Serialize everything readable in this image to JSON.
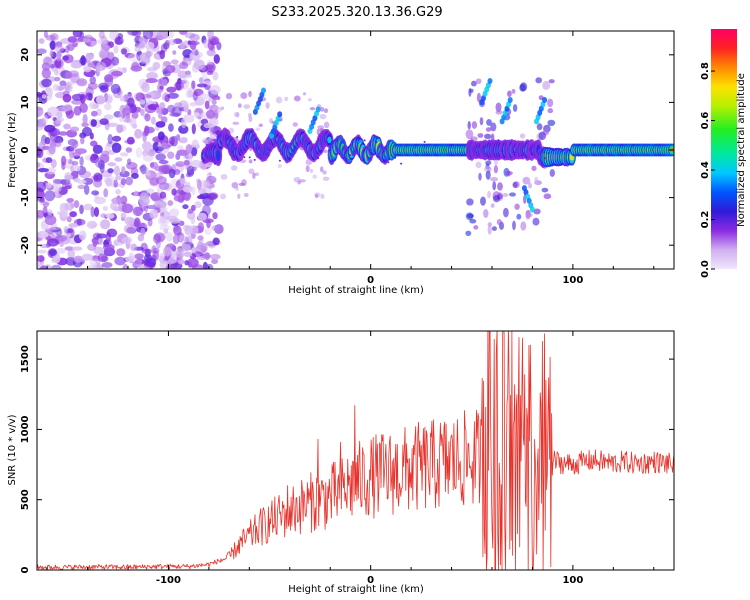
{
  "title": "S233.2025.320.13.36.G29",
  "chart_data": [
    {
      "type": "heatmap",
      "xlabel": "Height of straight line (km)",
      "ylabel": "Frequency (Hz)",
      "xlim": [
        -165,
        150
      ],
      "ylim": [
        -25,
        25
      ],
      "xticks": [
        -100,
        0,
        100
      ],
      "yticks": [
        -20,
        -10,
        0,
        10,
        20
      ],
      "colorbar": {
        "label": "Normalized spectral amplitude",
        "range": [
          0,
          0.97
        ],
        "ticks": [
          0.0,
          0.2,
          0.4,
          0.6,
          0.8
        ],
        "tick_labels": [
          "0.0",
          "0.2",
          "0.4",
          "0.6",
          "0.8"
        ]
      },
      "features": [
        {
          "name": "noise-region",
          "x_range": [
            -165,
            -80
          ],
          "y_range": [
            -25,
            25
          ],
          "amplitude": 0.1
        },
        {
          "name": "signal-band",
          "x_range": [
            -82,
            150
          ],
          "y_center": 0,
          "amplitude_range": [
            0.2,
            0.95
          ]
        },
        {
          "name": "burst",
          "x_range": [
            48,
            90
          ],
          "y_range": [
            -18,
            15
          ],
          "amplitude": 0.3
        }
      ]
    },
    {
      "type": "line",
      "xlabel": "Height of straight line (km)",
      "ylabel": "SNR (10 * v/v)",
      "xlim": [
        -165,
        150
      ],
      "ylim": [
        0,
        1700
      ],
      "xticks": [
        -100,
        0,
        100
      ],
      "yticks": [
        0,
        500,
        1000,
        1500
      ],
      "color": "#e8322b",
      "series": [
        {
          "name": "SNR",
          "x": [
            -165,
            -150,
            -135,
            -120,
            -105,
            -90,
            -80,
            -70,
            -65,
            -60,
            -55,
            -50,
            -45,
            -40,
            -35,
            -30,
            -25,
            -20,
            -15,
            -10,
            -5,
            0,
            5,
            10,
            15,
            20,
            25,
            30,
            35,
            40,
            45,
            50,
            55,
            60,
            65,
            70,
            75,
            80,
            85,
            90,
            95,
            100,
            105,
            110,
            115,
            120,
            125,
            130,
            135,
            140,
            145,
            150
          ],
          "values": [
            20,
            20,
            22,
            20,
            25,
            25,
            40,
            90,
            180,
            240,
            300,
            340,
            380,
            420,
            450,
            480,
            500,
            520,
            560,
            600,
            640,
            660,
            680,
            690,
            700,
            720,
            730,
            740,
            760,
            770,
            780,
            790,
            800,
            700,
            650,
            720,
            680,
            640,
            720,
            780,
            760,
            750,
            770,
            780,
            770,
            760,
            770,
            760,
            760,
            770,
            760,
            750
          ]
        }
      ]
    }
  ]
}
